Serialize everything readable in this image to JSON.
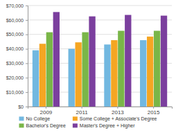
{
  "chart_data": {
    "type": "bar",
    "categories": [
      "2009",
      "2011",
      "2013",
      "2015"
    ],
    "series": [
      {
        "name": "No College",
        "color": "#72B8E0",
        "values": [
          39000,
          40000,
          43000,
          46000
        ]
      },
      {
        "name": "Some College + Associate's Degree",
        "color": "#F5A623",
        "values": [
          43500,
          44500,
          46000,
          48500
        ]
      },
      {
        "name": "Bachelor's Degree",
        "color": "#7AB648",
        "values": [
          51500,
          51500,
          52500,
          52500
        ]
      },
      {
        "name": "Master's Degree + Higher",
        "color": "#7B3F9E",
        "values": [
          65500,
          62500,
          63500,
          63000
        ]
      }
    ],
    "ylim": [
      0,
      70000
    ],
    "yticks": [
      {
        "value": 0,
        "label": "$0"
      },
      {
        "value": 10000,
        "label": "$10,000"
      },
      {
        "value": 20000,
        "label": "$20,000"
      },
      {
        "value": 30000,
        "label": "$30,000"
      },
      {
        "value": 40000,
        "label": "$40,000"
      },
      {
        "value": 50000,
        "label": "$50,000"
      },
      {
        "value": 60000,
        "label": "$60,000"
      },
      {
        "value": 70000,
        "label": "$70,000"
      }
    ],
    "grid": true,
    "legend": "bottom"
  }
}
